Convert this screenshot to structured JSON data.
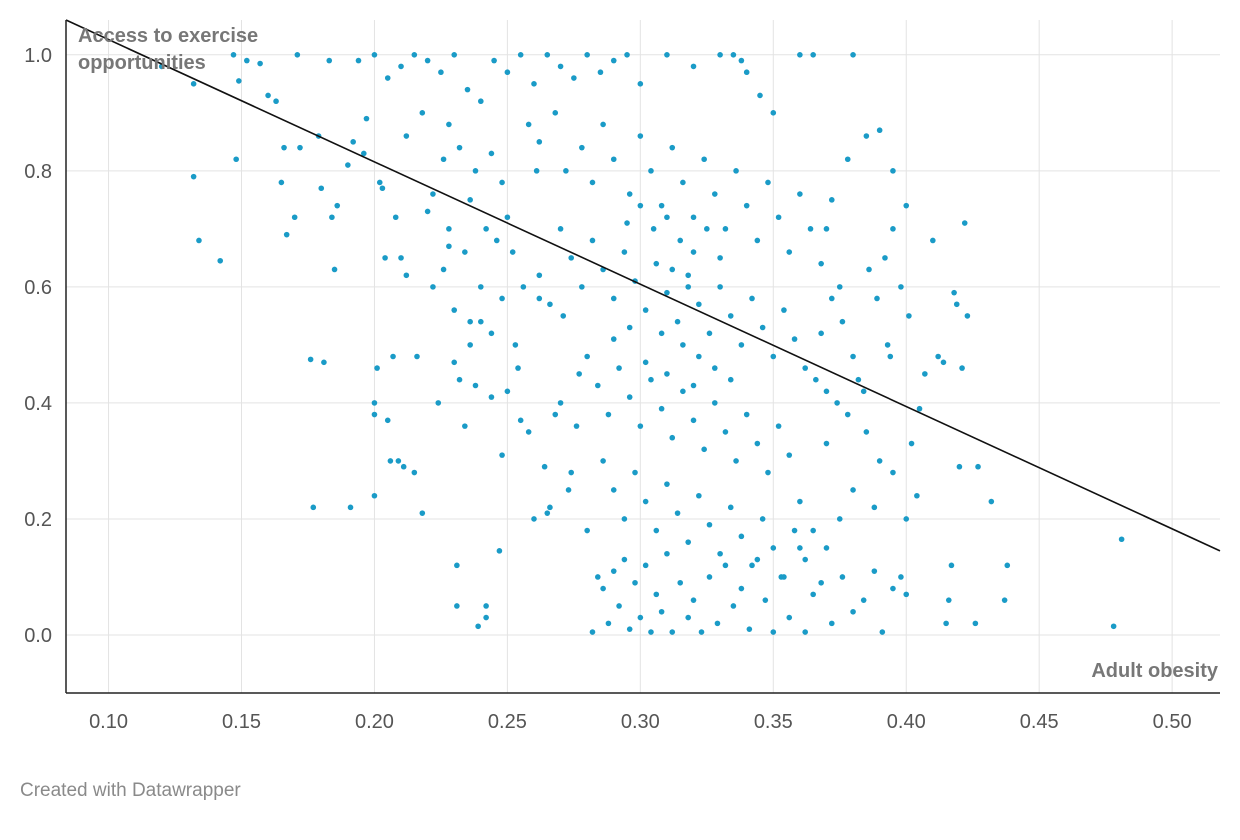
{
  "chart_data": {
    "type": "scatter",
    "title": "",
    "xlabel": "Adult obesity",
    "ylabel": [
      "Access to exercise",
      "opportunities"
    ],
    "xlim": [
      0.084,
      0.518
    ],
    "ylim": [
      -0.1,
      1.06
    ],
    "x_ticks": [
      "0.10",
      "0.15",
      "0.20",
      "0.25",
      "0.30",
      "0.35",
      "0.40",
      "0.45",
      "0.50"
    ],
    "y_ticks": [
      "0.0",
      "0.2",
      "0.4",
      "0.6",
      "0.8",
      "1.0"
    ],
    "x_tick_values": [
      0.1,
      0.15,
      0.2,
      0.25,
      0.3,
      0.35,
      0.4,
      0.45,
      0.5
    ],
    "y_tick_values": [
      0,
      0.2,
      0.4,
      0.6,
      0.8,
      1.0
    ],
    "grid": true,
    "trendline": {
      "x": [
        0.084,
        0.518
      ],
      "y": [
        1.06,
        0.145
      ]
    },
    "point_color": "#1a9bc7",
    "line_color": "#111111",
    "points": [
      [
        0.12,
        0.98
      ],
      [
        0.132,
        0.95
      ],
      [
        0.132,
        0.79
      ],
      [
        0.134,
        0.68
      ],
      [
        0.142,
        0.645
      ],
      [
        0.147,
        1.0
      ],
      [
        0.148,
        0.82
      ],
      [
        0.149,
        0.955
      ],
      [
        0.152,
        0.99
      ],
      [
        0.157,
        0.985
      ],
      [
        0.16,
        0.93
      ],
      [
        0.163,
        0.92
      ],
      [
        0.165,
        0.78
      ],
      [
        0.166,
        0.84
      ],
      [
        0.167,
        0.69
      ],
      [
        0.17,
        0.72
      ],
      [
        0.171,
        1.0
      ],
      [
        0.172,
        0.84
      ],
      [
        0.176,
        0.475
      ],
      [
        0.177,
        0.22
      ],
      [
        0.179,
        0.86
      ],
      [
        0.18,
        0.77
      ],
      [
        0.181,
        0.47
      ],
      [
        0.183,
        0.99
      ],
      [
        0.184,
        0.72
      ],
      [
        0.185,
        0.63
      ],
      [
        0.186,
        0.74
      ],
      [
        0.19,
        0.81
      ],
      [
        0.191,
        0.22
      ],
      [
        0.192,
        0.85
      ],
      [
        0.194,
        0.99
      ],
      [
        0.196,
        0.83
      ],
      [
        0.197,
        0.89
      ],
      [
        0.2,
        0.38
      ],
      [
        0.2,
        0.4
      ],
      [
        0.2,
        0.24
      ],
      [
        0.201,
        0.46
      ],
      [
        0.202,
        0.78
      ],
      [
        0.203,
        0.77
      ],
      [
        0.204,
        0.65
      ],
      [
        0.205,
        0.37
      ],
      [
        0.206,
        0.3
      ],
      [
        0.207,
        0.48
      ],
      [
        0.208,
        0.72
      ],
      [
        0.209,
        0.3
      ],
      [
        0.21,
        0.65
      ],
      [
        0.211,
        0.29
      ],
      [
        0.212,
        0.62
      ],
      [
        0.215,
        0.28
      ],
      [
        0.216,
        0.48
      ],
      [
        0.218,
        0.21
      ],
      [
        0.22,
        0.73
      ],
      [
        0.222,
        0.76
      ],
      [
        0.224,
        0.4
      ],
      [
        0.226,
        0.63
      ],
      [
        0.228,
        0.67
      ],
      [
        0.23,
        0.47
      ],
      [
        0.231,
        0.12
      ],
      [
        0.231,
        0.05
      ],
      [
        0.232,
        0.44
      ],
      [
        0.234,
        0.36
      ],
      [
        0.236,
        0.54
      ],
      [
        0.238,
        0.43
      ],
      [
        0.239,
        0.015
      ],
      [
        0.24,
        0.54
      ],
      [
        0.242,
        0.05
      ],
      [
        0.242,
        0.03
      ],
      [
        0.244,
        0.41
      ],
      [
        0.247,
        0.145
      ],
      [
        0.248,
        0.31
      ],
      [
        0.25,
        0.42
      ],
      [
        0.252,
        0.66
      ],
      [
        0.253,
        0.5
      ],
      [
        0.254,
        0.46
      ],
      [
        0.255,
        0.37
      ],
      [
        0.256,
        0.6
      ],
      [
        0.258,
        0.35
      ],
      [
        0.26,
        0.2
      ],
      [
        0.261,
        0.8
      ],
      [
        0.262,
        0.58
      ],
      [
        0.264,
        0.29
      ],
      [
        0.265,
        0.21
      ],
      [
        0.266,
        0.22
      ],
      [
        0.268,
        0.38
      ],
      [
        0.27,
        0.4
      ],
      [
        0.271,
        0.55
      ],
      [
        0.273,
        0.25
      ],
      [
        0.274,
        0.28
      ],
      [
        0.276,
        0.36
      ],
      [
        0.277,
        0.45
      ],
      [
        0.28,
        0.18
      ],
      [
        0.282,
        0.005
      ],
      [
        0.284,
        0.1
      ],
      [
        0.286,
        0.08
      ],
      [
        0.288,
        0.02
      ],
      [
        0.29,
        0.11
      ],
      [
        0.292,
        0.05
      ],
      [
        0.294,
        0.13
      ],
      [
        0.296,
        0.01
      ],
      [
        0.298,
        0.09
      ],
      [
        0.3,
        0.03
      ],
      [
        0.302,
        0.12
      ],
      [
        0.304,
        0.005
      ],
      [
        0.306,
        0.07
      ],
      [
        0.308,
        0.04
      ],
      [
        0.31,
        0.14
      ],
      [
        0.312,
        0.005
      ],
      [
        0.315,
        0.09
      ],
      [
        0.318,
        0.03
      ],
      [
        0.32,
        0.06
      ],
      [
        0.323,
        0.005
      ],
      [
        0.326,
        0.1
      ],
      [
        0.329,
        0.02
      ],
      [
        0.332,
        0.12
      ],
      [
        0.335,
        0.05
      ],
      [
        0.338,
        0.08
      ],
      [
        0.341,
        0.01
      ],
      [
        0.344,
        0.13
      ],
      [
        0.347,
        0.06
      ],
      [
        0.35,
        0.005
      ],
      [
        0.353,
        0.1
      ],
      [
        0.356,
        0.03
      ],
      [
        0.36,
        0.15
      ],
      [
        0.362,
        0.005
      ],
      [
        0.365,
        0.07
      ],
      [
        0.368,
        0.09
      ],
      [
        0.372,
        0.02
      ],
      [
        0.376,
        0.1
      ],
      [
        0.38,
        0.04
      ],
      [
        0.384,
        0.06
      ],
      [
        0.388,
        0.11
      ],
      [
        0.391,
        0.005
      ],
      [
        0.395,
        0.08
      ],
      [
        0.398,
        0.1
      ],
      [
        0.4,
        0.07
      ],
      [
        0.4,
        0.2
      ],
      [
        0.402,
        0.33
      ],
      [
        0.404,
        0.24
      ],
      [
        0.405,
        0.39
      ],
      [
        0.407,
        0.45
      ],
      [
        0.41,
        0.68
      ],
      [
        0.412,
        0.48
      ],
      [
        0.414,
        0.47
      ],
      [
        0.415,
        0.02
      ],
      [
        0.416,
        0.06
      ],
      [
        0.417,
        0.12
      ],
      [
        0.418,
        0.59
      ],
      [
        0.419,
        0.57
      ],
      [
        0.42,
        0.29
      ],
      [
        0.421,
        0.46
      ],
      [
        0.422,
        0.71
      ],
      [
        0.423,
        0.55
      ],
      [
        0.426,
        0.02
      ],
      [
        0.427,
        0.29
      ],
      [
        0.432,
        0.23
      ],
      [
        0.437,
        0.06
      ],
      [
        0.438,
        0.12
      ],
      [
        0.478,
        0.015
      ],
      [
        0.481,
        0.165
      ],
      [
        0.38,
        1.0
      ],
      [
        0.36,
        1.0
      ],
      [
        0.365,
        1.0
      ],
      [
        0.395,
        0.8
      ],
      [
        0.39,
        0.87
      ],
      [
        0.385,
        0.86
      ],
      [
        0.4,
        0.74
      ],
      [
        0.395,
        0.7
      ],
      [
        0.392,
        0.65
      ],
      [
        0.398,
        0.6
      ],
      [
        0.401,
        0.55
      ],
      [
        0.393,
        0.5
      ],
      [
        0.389,
        0.58
      ],
      [
        0.386,
        0.63
      ],
      [
        0.394,
        0.48
      ],
      [
        0.382,
        0.44
      ],
      [
        0.378,
        0.82
      ],
      [
        0.372,
        0.75
      ],
      [
        0.37,
        0.7
      ],
      [
        0.375,
        0.6
      ],
      [
        0.368,
        0.52
      ],
      [
        0.385,
        0.35
      ],
      [
        0.39,
        0.3
      ],
      [
        0.38,
        0.25
      ],
      [
        0.375,
        0.2
      ],
      [
        0.388,
        0.22
      ],
      [
        0.395,
        0.28
      ],
      [
        0.37,
        0.15
      ],
      [
        0.365,
        0.18
      ],
      [
        0.36,
        0.23
      ],
      [
        0.37,
        0.33
      ],
      [
        0.245,
        0.99
      ],
      [
        0.25,
        0.97
      ],
      [
        0.255,
        1.0
      ],
      [
        0.26,
        0.95
      ],
      [
        0.265,
        1.0
      ],
      [
        0.27,
        0.98
      ],
      [
        0.275,
        0.96
      ],
      [
        0.28,
        1.0
      ],
      [
        0.285,
        0.97
      ],
      [
        0.29,
        0.99
      ],
      [
        0.295,
        1.0
      ],
      [
        0.3,
        0.95
      ],
      [
        0.31,
        1.0
      ],
      [
        0.32,
        0.98
      ],
      [
        0.33,
        1.0
      ],
      [
        0.335,
        1.0
      ],
      [
        0.338,
        0.99
      ],
      [
        0.34,
        0.97
      ],
      [
        0.345,
        0.93
      ],
      [
        0.35,
        0.9
      ],
      [
        0.23,
        1.0
      ],
      [
        0.225,
        0.97
      ],
      [
        0.22,
        0.99
      ],
      [
        0.215,
        1.0
      ],
      [
        0.21,
        0.98
      ],
      [
        0.205,
        0.96
      ],
      [
        0.2,
        1.0
      ],
      [
        0.235,
        0.94
      ],
      [
        0.24,
        0.92
      ],
      [
        0.228,
        0.88
      ],
      [
        0.218,
        0.9
      ],
      [
        0.212,
        0.86
      ],
      [
        0.232,
        0.84
      ],
      [
        0.238,
        0.8
      ],
      [
        0.244,
        0.83
      ],
      [
        0.248,
        0.78
      ],
      [
        0.226,
        0.82
      ],
      [
        0.236,
        0.75
      ],
      [
        0.242,
        0.7
      ],
      [
        0.25,
        0.72
      ],
      [
        0.246,
        0.68
      ],
      [
        0.234,
        0.66
      ],
      [
        0.24,
        0.6
      ],
      [
        0.248,
        0.58
      ],
      [
        0.244,
        0.52
      ],
      [
        0.236,
        0.5
      ],
      [
        0.23,
        0.56
      ],
      [
        0.222,
        0.6
      ],
      [
        0.228,
        0.7
      ],
      [
        0.258,
        0.88
      ],
      [
        0.262,
        0.85
      ],
      [
        0.268,
        0.9
      ],
      [
        0.272,
        0.8
      ],
      [
        0.278,
        0.84
      ],
      [
        0.282,
        0.78
      ],
      [
        0.286,
        0.88
      ],
      [
        0.29,
        0.82
      ],
      [
        0.296,
        0.76
      ],
      [
        0.3,
        0.86
      ],
      [
        0.304,
        0.8
      ],
      [
        0.308,
        0.74
      ],
      [
        0.312,
        0.84
      ],
      [
        0.316,
        0.78
      ],
      [
        0.32,
        0.72
      ],
      [
        0.324,
        0.82
      ],
      [
        0.328,
        0.76
      ],
      [
        0.332,
        0.7
      ],
      [
        0.336,
        0.8
      ],
      [
        0.34,
        0.74
      ],
      [
        0.344,
        0.68
      ],
      [
        0.348,
        0.78
      ],
      [
        0.352,
        0.72
      ],
      [
        0.356,
        0.66
      ],
      [
        0.36,
        0.76
      ],
      [
        0.364,
        0.7
      ],
      [
        0.368,
        0.64
      ],
      [
        0.372,
        0.58
      ],
      [
        0.376,
        0.54
      ],
      [
        0.38,
        0.48
      ],
      [
        0.384,
        0.42
      ],
      [
        0.27,
        0.7
      ],
      [
        0.274,
        0.65
      ],
      [
        0.278,
        0.6
      ],
      [
        0.282,
        0.68
      ],
      [
        0.286,
        0.63
      ],
      [
        0.29,
        0.58
      ],
      [
        0.294,
        0.66
      ],
      [
        0.298,
        0.61
      ],
      [
        0.302,
        0.56
      ],
      [
        0.306,
        0.64
      ],
      [
        0.31,
        0.59
      ],
      [
        0.314,
        0.54
      ],
      [
        0.318,
        0.62
      ],
      [
        0.322,
        0.57
      ],
      [
        0.326,
        0.52
      ],
      [
        0.33,
        0.6
      ],
      [
        0.334,
        0.55
      ],
      [
        0.338,
        0.5
      ],
      [
        0.342,
        0.58
      ],
      [
        0.346,
        0.53
      ],
      [
        0.35,
        0.48
      ],
      [
        0.354,
        0.56
      ],
      [
        0.358,
        0.51
      ],
      [
        0.362,
        0.46
      ],
      [
        0.366,
        0.44
      ],
      [
        0.37,
        0.42
      ],
      [
        0.374,
        0.4
      ],
      [
        0.378,
        0.38
      ],
      [
        0.262,
        0.62
      ],
      [
        0.266,
        0.57
      ],
      [
        0.28,
        0.48
      ],
      [
        0.284,
        0.43
      ],
      [
        0.288,
        0.38
      ],
      [
        0.292,
        0.46
      ],
      [
        0.296,
        0.41
      ],
      [
        0.3,
        0.36
      ],
      [
        0.304,
        0.44
      ],
      [
        0.308,
        0.39
      ],
      [
        0.312,
        0.34
      ],
      [
        0.316,
        0.42
      ],
      [
        0.32,
        0.37
      ],
      [
        0.324,
        0.32
      ],
      [
        0.328,
        0.4
      ],
      [
        0.332,
        0.35
      ],
      [
        0.336,
        0.3
      ],
      [
        0.34,
        0.38
      ],
      [
        0.344,
        0.33
      ],
      [
        0.348,
        0.28
      ],
      [
        0.352,
        0.36
      ],
      [
        0.356,
        0.31
      ],
      [
        0.286,
        0.3
      ],
      [
        0.29,
        0.25
      ],
      [
        0.294,
        0.2
      ],
      [
        0.298,
        0.28
      ],
      [
        0.302,
        0.23
      ],
      [
        0.306,
        0.18
      ],
      [
        0.31,
        0.26
      ],
      [
        0.314,
        0.21
      ],
      [
        0.318,
        0.16
      ],
      [
        0.322,
        0.24
      ],
      [
        0.326,
        0.19
      ],
      [
        0.33,
        0.14
      ],
      [
        0.334,
        0.22
      ],
      [
        0.338,
        0.17
      ],
      [
        0.342,
        0.12
      ],
      [
        0.346,
        0.2
      ],
      [
        0.35,
        0.15
      ],
      [
        0.354,
        0.1
      ],
      [
        0.358,
        0.18
      ],
      [
        0.362,
        0.13
      ],
      [
        0.305,
        0.7
      ],
      [
        0.31,
        0.72
      ],
      [
        0.315,
        0.68
      ],
      [
        0.32,
        0.66
      ],
      [
        0.3,
        0.74
      ],
      [
        0.295,
        0.71
      ],
      [
        0.325,
        0.7
      ],
      [
        0.33,
        0.65
      ],
      [
        0.318,
        0.6
      ],
      [
        0.312,
        0.63
      ],
      [
        0.308,
        0.52
      ],
      [
        0.316,
        0.5
      ],
      [
        0.322,
        0.48
      ],
      [
        0.328,
        0.46
      ],
      [
        0.334,
        0.44
      ],
      [
        0.302,
        0.47
      ],
      [
        0.296,
        0.53
      ],
      [
        0.29,
        0.51
      ],
      [
        0.31,
        0.45
      ],
      [
        0.32,
        0.43
      ]
    ]
  },
  "footer": "Created with Datawrapper"
}
